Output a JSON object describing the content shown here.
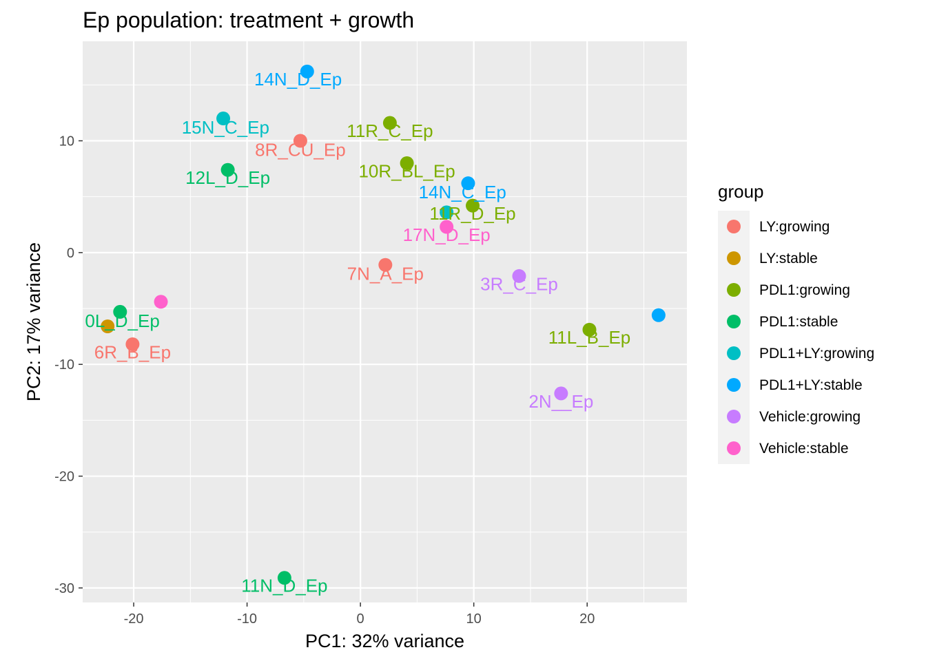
{
  "chart_data": {
    "type": "scatter",
    "title": "Ep population: treatment + growth",
    "xlabel": "PC1: 32% variance",
    "ylabel": "PC2: 17% variance",
    "xlim": [
      -24.5,
      28.8
    ],
    "ylim": [
      -31.3,
      18.9
    ],
    "xticks": [
      -20,
      -10,
      0,
      10,
      20
    ],
    "yticks": [
      -30,
      -20,
      -10,
      0,
      10
    ],
    "xtick_labels": [
      "-20",
      "-10",
      "0",
      "10",
      "20"
    ],
    "ytick_labels": [
      "-30",
      "-20",
      "-10",
      "0",
      "10"
    ],
    "grid": true,
    "legend": {
      "title": "group",
      "placement": "right",
      "entries": [
        {
          "name": "LY:growing",
          "color": "#F8766D"
        },
        {
          "name": "LY:stable",
          "color": "#CD9600"
        },
        {
          "name": "PDL1:growing",
          "color": "#7CAE00"
        },
        {
          "name": "PDL1:stable",
          "color": "#00BE67"
        },
        {
          "name": "PDL1+LY:growing",
          "color": "#00BFC4"
        },
        {
          "name": "PDL1+LY:stable",
          "color": "#00A9FF"
        },
        {
          "name": "Vehicle:growing",
          "color": "#C77CFF"
        },
        {
          "name": "Vehicle:stable",
          "color": "#FF61CC"
        }
      ]
    },
    "points": [
      {
        "x": -4.7,
        "y": 16.2,
        "group": 5,
        "label": "14N_D_Ep",
        "lx": -5.5,
        "ly": 15.5
      },
      {
        "x": -12.1,
        "y": 12.0,
        "group": 4,
        "label": "15N_C_Ep",
        "lx": -11.9,
        "ly": 11.2
      },
      {
        "x": 2.6,
        "y": 11.6,
        "group": 2,
        "label": "11R_C_Ep",
        "lx": 2.6,
        "ly": 10.9
      },
      {
        "x": -5.3,
        "y": 10.0,
        "group": 0,
        "label": "8R_CU_Ep",
        "lx": -5.3,
        "ly": 9.2
      },
      {
        "x": -11.7,
        "y": 7.4,
        "group": 3,
        "label": "12L_D_Ep",
        "lx": -11.7,
        "ly": 6.7
      },
      {
        "x": 4.1,
        "y": 8.0,
        "group": 2,
        "label": "10R_BL_Ep",
        "lx": 4.1,
        "ly": 7.3
      },
      {
        "x": 9.5,
        "y": 6.2,
        "group": 5,
        "label": "14N_C_Ep",
        "lx": 9.0,
        "ly": 5.4
      },
      {
        "x": 9.9,
        "y": 4.2,
        "group": 2,
        "label": "11R_D_Ep",
        "lx": 9.9,
        "ly": 3.5
      },
      {
        "x": 7.6,
        "y": 3.6,
        "group": 4,
        "label": "",
        "lx": 0,
        "ly": 0
      },
      {
        "x": 7.6,
        "y": 2.3,
        "group": 7,
        "label": "17N_D_Ep",
        "lx": 7.6,
        "ly": 1.6
      },
      {
        "x": 2.2,
        "y": -1.1,
        "group": 0,
        "label": "7N_A_Ep",
        "lx": 2.2,
        "ly": -1.9
      },
      {
        "x": 14.0,
        "y": -2.1,
        "group": 6,
        "label": "3R_C_Ep",
        "lx": 14.0,
        "ly": -2.8
      },
      {
        "x": -17.6,
        "y": -4.4,
        "group": 7,
        "label": "",
        "lx": 0,
        "ly": 0
      },
      {
        "x": -21.2,
        "y": -5.3,
        "group": 3,
        "label": "0L_D_Ep",
        "lx": -21.0,
        "ly": -6.1
      },
      {
        "x": -22.3,
        "y": -6.6,
        "group": 1,
        "label": "",
        "lx": 0,
        "ly": 0
      },
      {
        "x": 26.3,
        "y": -5.6,
        "group": 5,
        "label": "",
        "lx": 0,
        "ly": 0
      },
      {
        "x": 20.2,
        "y": -6.9,
        "group": 2,
        "label": "11L_B_Ep",
        "lx": 20.2,
        "ly": -7.6
      },
      {
        "x": -20.1,
        "y": -8.2,
        "group": 0,
        "label": "6R_B_Ep",
        "lx": -20.1,
        "ly": -8.9
      },
      {
        "x": 17.7,
        "y": -12.6,
        "group": 6,
        "label": "2N__Ep",
        "lx": 17.7,
        "ly": -13.3
      },
      {
        "x": -6.7,
        "y": -29.1,
        "group": 3,
        "label": "11N_D_Ep",
        "lx": -6.7,
        "ly": -29.8
      }
    ]
  }
}
